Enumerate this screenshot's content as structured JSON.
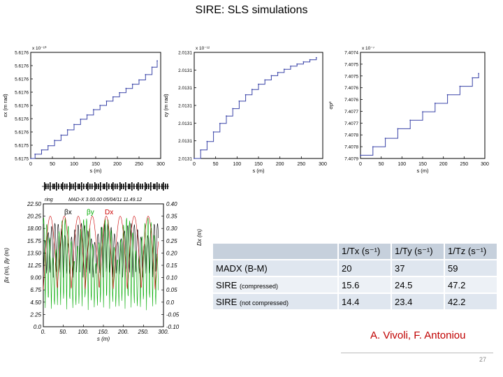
{
  "slide": {
    "title": "SIRE: SLS simulations",
    "authors": "A. Vivoli, F. Antoniou",
    "page_number": "27"
  },
  "table": {
    "headers": [
      "",
      "1/Tx (s⁻¹)",
      "1/Ty (s⁻¹)",
      "1/Tz (s⁻¹)"
    ],
    "rows": [
      {
        "label": "MADX (B-M)",
        "note": "",
        "values": [
          "20",
          "37",
          "59"
        ]
      },
      {
        "label": "SIRE",
        "note": "(compressed)",
        "values": [
          "15.6",
          "24.5",
          "47.2"
        ]
      },
      {
        "label": "SIRE",
        "note": "(not compressed)",
        "values": [
          "14.4",
          "23.4",
          "42.2"
        ]
      }
    ]
  },
  "chart_data": [
    {
      "type": "line",
      "xlabel": "s (m)",
      "ylabel": "εx (m rad)",
      "multiplier": "x 10⁻¹⁰",
      "xlim": [
        0,
        300
      ],
      "xticks": [
        0,
        50,
        100,
        150,
        200,
        250,
        300
      ],
      "ytick_labels": [
        "5.6175",
        "5.6175",
        "5.6176",
        "5.6176",
        "5.6176",
        "5.6176",
        "5.6176",
        "5.6176",
        "5.6176"
      ],
      "color": "#3a44a8",
      "x": [
        0,
        10,
        25,
        40,
        55,
        70,
        85,
        100,
        115,
        130,
        145,
        160,
        175,
        190,
        205,
        220,
        235,
        250,
        265,
        280,
        292
      ],
      "y": [
        0.0,
        0.04,
        0.08,
        0.12,
        0.17,
        0.22,
        0.27,
        0.32,
        0.37,
        0.41,
        0.46,
        0.5,
        0.54,
        0.58,
        0.62,
        0.66,
        0.7,
        0.74,
        0.79,
        0.86,
        0.92
      ]
    },
    {
      "type": "line",
      "xlabel": "s (m)",
      "ylabel": "εy (m rad)",
      "multiplier": "x 10⁻¹²",
      "xlim": [
        0,
        300
      ],
      "xticks": [
        0,
        50,
        100,
        150,
        200,
        250,
        300
      ],
      "ytick_labels": [
        "2.0131",
        "2.0131",
        "2.0131",
        "2.0131",
        "2.0131",
        "2.0131",
        "2.0131"
      ],
      "color": "#3a44a8",
      "x": [
        0,
        15,
        30,
        45,
        60,
        75,
        90,
        105,
        120,
        135,
        150,
        165,
        180,
        195,
        210,
        225,
        240,
        255,
        270,
        285
      ],
      "y": [
        0.0,
        0.08,
        0.16,
        0.25,
        0.33,
        0.4,
        0.47,
        0.54,
        0.6,
        0.65,
        0.7,
        0.74,
        0.78,
        0.81,
        0.84,
        0.87,
        0.89,
        0.91,
        0.93,
        0.95
      ]
    },
    {
      "type": "line",
      "xlabel": "s (m)",
      "ylabel": "σp²",
      "multiplier": "x 10⁻⁷",
      "xlim": [
        0,
        300
      ],
      "xticks": [
        0,
        50,
        100,
        150,
        200,
        250,
        300
      ],
      "ytick_labels": [
        "7.4079",
        "7.4078",
        "7.4078",
        "7.4077",
        "7.4077",
        "7.4076",
        "7.4076",
        "7.4075",
        "7.4075",
        "7.4074"
      ],
      "color": "#3a44a8",
      "x": [
        0,
        30,
        60,
        90,
        120,
        150,
        180,
        210,
        240,
        270,
        285
      ],
      "y": [
        0.03,
        0.11,
        0.19,
        0.28,
        0.36,
        0.44,
        0.52,
        0.6,
        0.68,
        0.76,
        0.8
      ]
    },
    {
      "type": "line",
      "header": "MAD-X 3.00.00  05/04/11 11.49.12",
      "ring_label": "ring",
      "xlabel": "s (m)",
      "ylabel_left": "βx (m), βy (m)",
      "ylabel_right": "Dx (m)",
      "xticks": [
        0,
        50,
        100,
        150,
        200,
        250,
        300
      ],
      "left_ticks": [
        "0.0",
        "2.25",
        "4.50",
        "6.75",
        "9.00",
        "11.25",
        "13.50",
        "15.75",
        "18.00",
        "20.25",
        "22.50"
      ],
      "right_ticks": [
        "-0.10",
        "-0.05",
        "0.0",
        "0.05",
        "0.10",
        "0.15",
        "0.20",
        "0.25",
        "0.30",
        "0.35",
        "0.40"
      ],
      "legend": [
        "βx",
        "βy",
        "Dx"
      ],
      "series_colors": [
        "#000000",
        "#00aa00",
        "#cc0000"
      ],
      "ylim_left": [
        0,
        22.5
      ],
      "ylim_right": [
        -0.1,
        0.4
      ]
    }
  ]
}
